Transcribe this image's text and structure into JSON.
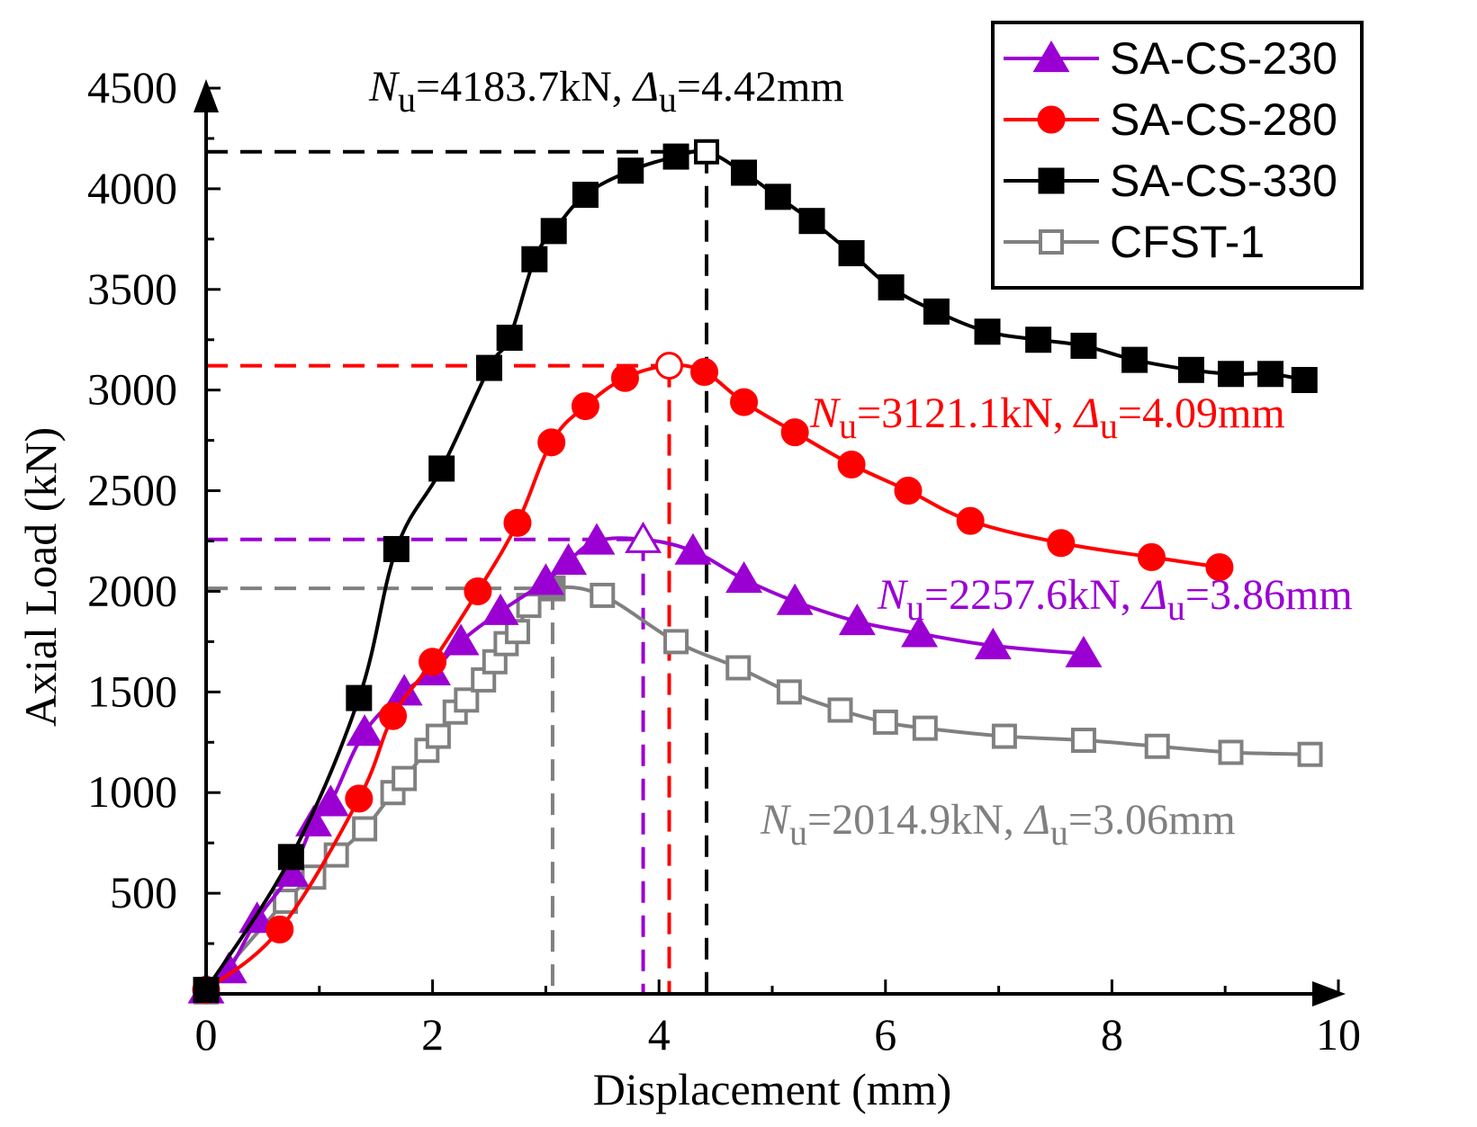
{
  "chart_data": {
    "type": "line",
    "title": "",
    "xlabel": "Displacement (mm)",
    "ylabel": "Axial Load (kN)",
    "xlim": [
      0,
      10
    ],
    "ylim": [
      0,
      4500
    ],
    "x_ticks": [
      0,
      2,
      4,
      6,
      8,
      10
    ],
    "y_ticks": [
      500,
      1000,
      1500,
      2000,
      2500,
      3000,
      3500,
      4000,
      4500
    ],
    "grid": false,
    "legend_position": "top-right",
    "series": [
      {
        "name": "SA-CS-230",
        "color": "#9b00d3",
        "marker": "triangle",
        "x": [
          0,
          0.2,
          0.45,
          0.75,
          0.95,
          1.1,
          1.4,
          1.75,
          2.0,
          2.25,
          2.6,
          3.0,
          3.2,
          3.45,
          3.86,
          4.3,
          4.75,
          5.2,
          5.75,
          6.3,
          6.95,
          7.75
        ],
        "y": [
          20,
          120,
          370,
          600,
          850,
          950,
          1300,
          1500,
          1600,
          1750,
          1900,
          2050,
          2150,
          2250,
          2257.6,
          2200,
          2060,
          1950,
          1850,
          1790,
          1730,
          1690
        ],
        "peak": {
          "x": 3.86,
          "y": 2257.6
        }
      },
      {
        "name": "SA-CS-280",
        "color": "#ff0000",
        "marker": "circle",
        "x": [
          0,
          0.65,
          1.35,
          1.65,
          2.0,
          2.4,
          2.75,
          3.05,
          3.35,
          3.7,
          4.09,
          4.4,
          4.75,
          5.2,
          5.7,
          6.2,
          6.75,
          7.55,
          8.35,
          8.95
        ],
        "y": [
          20,
          320,
          970,
          1380,
          1650,
          2000,
          2340,
          2740,
          2920,
          3060,
          3121.1,
          3090,
          2940,
          2790,
          2630,
          2500,
          2350,
          2240,
          2170,
          2120
        ],
        "peak": {
          "x": 4.09,
          "y": 3121.1
        }
      },
      {
        "name": "SA-CS-330",
        "color": "#000000",
        "marker": "square",
        "x": [
          0,
          0.75,
          1.35,
          1.68,
          2.08,
          2.5,
          2.68,
          2.9,
          3.07,
          3.35,
          3.75,
          4.15,
          4.42,
          4.75,
          5.05,
          5.35,
          5.7,
          6.05,
          6.45,
          6.9,
          7.35,
          7.75,
          8.2,
          8.7,
          9.05,
          9.4,
          9.7
        ],
        "y": [
          20,
          680,
          1470,
          2210,
          2610,
          3110,
          3260,
          3650,
          3790,
          3970,
          4090,
          4160,
          4183.7,
          4080,
          3960,
          3840,
          3680,
          3510,
          3390,
          3290,
          3250,
          3220,
          3150,
          3100,
          3080,
          3080,
          3050
        ],
        "peak": {
          "x": 4.42,
          "y": 4183.7
        }
      },
      {
        "name": "CFST-1",
        "color": "#808080",
        "marker": "square-open",
        "x": [
          0,
          0.7,
          0.95,
          1.15,
          1.4,
          1.65,
          1.75,
          1.95,
          2.05,
          2.2,
          2.3,
          2.45,
          2.55,
          2.65,
          2.75,
          2.85,
          3.06,
          3.5,
          4.15,
          4.7,
          5.15,
          5.6,
          6.0,
          6.35,
          7.05,
          7.75,
          8.4,
          9.05,
          9.75
        ],
        "y": [
          10,
          460,
          580,
          690,
          820,
          1000,
          1070,
          1210,
          1280,
          1400,
          1460,
          1560,
          1650,
          1740,
          1800,
          1930,
          2014.9,
          1980,
          1750,
          1620,
          1500,
          1410,
          1350,
          1320,
          1280,
          1260,
          1230,
          1200,
          1190
        ],
        "peak": {
          "x": 3.06,
          "y": 2014.9
        }
      }
    ],
    "annotations": [
      {
        "series": "SA-CS-330",
        "n_symbol": "N",
        "n_sub": "u",
        "n_text": "=4183.7kN, ",
        "d_symbol": "Δ",
        "d_sub": "u",
        "d_text": "=4.42mm"
      },
      {
        "series": "SA-CS-280",
        "n_symbol": "N",
        "n_sub": "u",
        "n_text": "=3121.1kN, ",
        "d_symbol": "Δ",
        "d_sub": "u",
        "d_text": "=4.09mm"
      },
      {
        "series": "SA-CS-230",
        "n_symbol": "N",
        "n_sub": "u",
        "n_text": "=2257.6kN, ",
        "d_symbol": "Δ",
        "d_sub": "u",
        "d_text": "=3.86mm"
      },
      {
        "series": "CFST-1",
        "n_symbol": "N",
        "n_sub": "u",
        "n_text": "=2014.9kN, ",
        "d_symbol": "Δ",
        "d_sub": "u",
        "d_text": "=3.06mm"
      }
    ]
  }
}
